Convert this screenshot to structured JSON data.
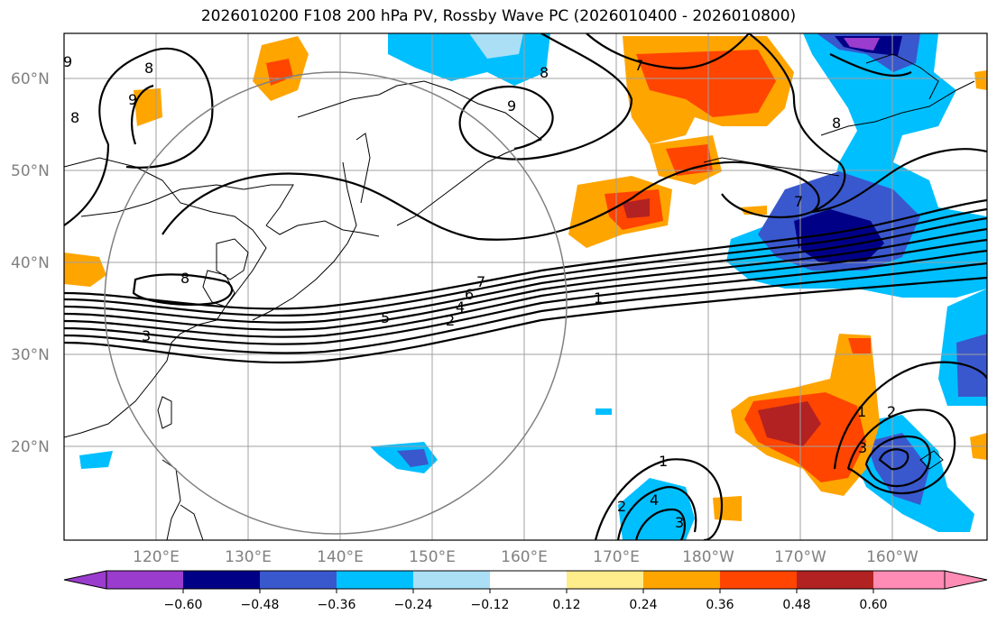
{
  "title": "2026010200 F108 200 hPa PV, Rossby Wave PC (2026010400 - 2026010800)",
  "map": {
    "lat_labels": [
      "60°N",
      "50°N",
      "40°N",
      "30°N",
      "20°N"
    ],
    "lon_labels": [
      "120°E",
      "130°E",
      "140°E",
      "150°E",
      "160°E",
      "170°E",
      "180°W",
      "170°W",
      "160°W"
    ],
    "grid_color": "#a0a0a0",
    "contour_labels": [
      "9",
      "8",
      "9",
      "8",
      "9",
      "7",
      "8",
      "8",
      "7",
      "8",
      "7",
      "6",
      "5",
      "4",
      "3",
      "2",
      "1",
      "1",
      "2",
      "3",
      "1",
      "2",
      "3",
      "4"
    ]
  },
  "colorbar": {
    "tick_labels": [
      "−0.60",
      "−0.48",
      "−0.36",
      "−0.24",
      "−0.12",
      "0.12",
      "0.24",
      "0.36",
      "0.48",
      "0.60"
    ],
    "colors": [
      "#9a3ccd",
      "#000087",
      "#3a58cd",
      "#00bfff",
      "#aadff6",
      "#ffffff",
      "#ffec8b",
      "#ffa500",
      "#ff4500",
      "#b22222",
      "#ff8cb4"
    ]
  }
}
